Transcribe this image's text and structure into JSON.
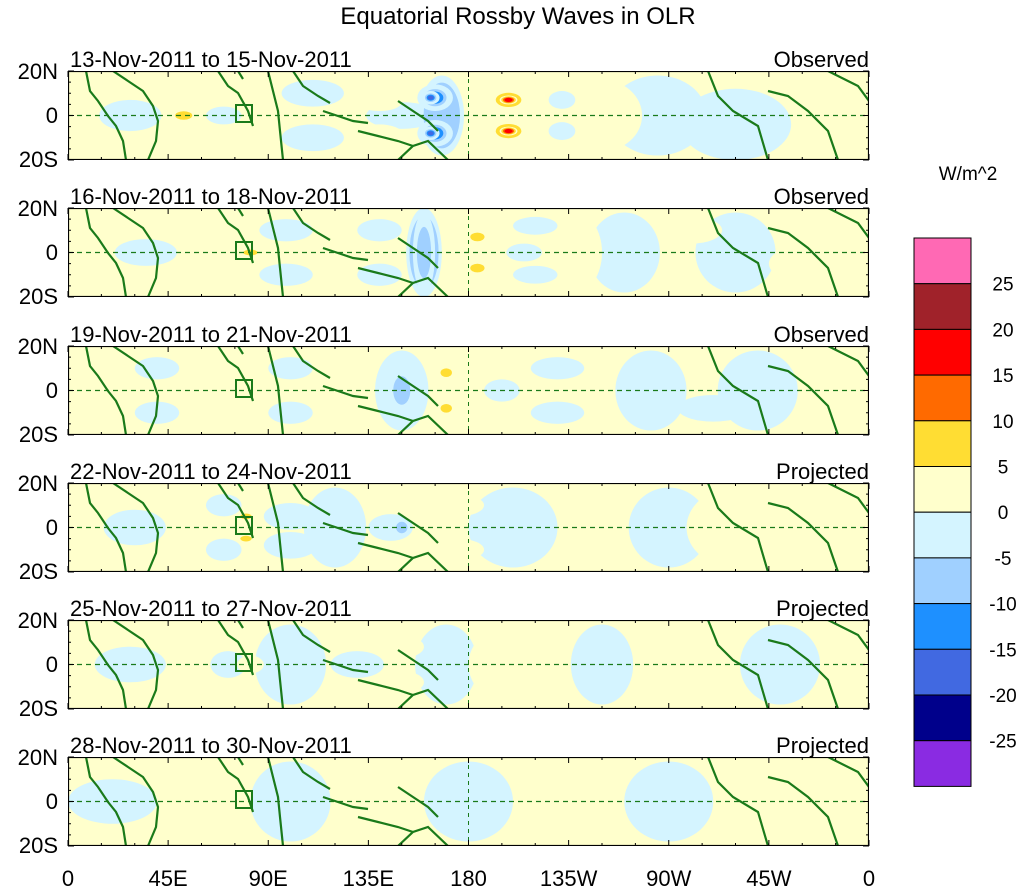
{
  "chart_data": {
    "type": "heatmap",
    "title": "Equatorial Rossby Waves in OLR",
    "units_label": "W/m^2",
    "x_ticks": [
      "0",
      "45E",
      "90E",
      "135E",
      "180",
      "135W",
      "90W",
      "45W",
      "0"
    ],
    "x_range_deg": [
      0,
      360
    ],
    "y_ticks": [
      "20N",
      "0",
      "20S"
    ],
    "y_range_deg": [
      -20,
      20
    ],
    "colorbar": {
      "levels": [
        "25",
        "20",
        "15",
        "10",
        "5",
        "0",
        "-5",
        "-10",
        "-15",
        "-20",
        "-25"
      ],
      "colors": [
        "#ff69b4",
        "#a0222a",
        "#ff0000",
        "#ff6a00",
        "#ffdd33",
        "#ffffcc",
        "#d4f4ff",
        "#a0d0ff",
        "#1e90ff",
        "#4169e1",
        "#00008b",
        "#8a2be2"
      ]
    },
    "panels": [
      {
        "date_range": "13-Nov-2011 to 15-Nov-2011",
        "status": "Observed",
        "blobs": [
          [
            48,
            8,
            10,
            5,
            8
          ],
          [
            50,
            -9,
            10,
            5,
            8
          ],
          [
            78,
            11,
            12,
            5,
            7
          ],
          [
            78,
            -12,
            12,
            5,
            7
          ],
          [
            100,
            0,
            12,
            4,
            8
          ],
          [
            52,
            0,
            6,
            3,
            12
          ],
          [
            28,
            0,
            14,
            7,
            -5
          ],
          [
            70,
            0,
            8,
            4,
            -9
          ],
          [
            110,
            10,
            14,
            6,
            -5
          ],
          [
            110,
            -10,
            14,
            6,
            -5
          ],
          [
            140,
            6,
            10,
            4,
            7
          ],
          [
            140,
            -8,
            10,
            4,
            7
          ],
          [
            150,
            0,
            16,
            6,
            -6
          ],
          [
            165,
            8,
            8,
            6,
            -18
          ],
          [
            165,
            -8,
            8,
            6,
            -18
          ],
          [
            163,
            8,
            4,
            3,
            -24
          ],
          [
            163,
            -8,
            4,
            3,
            -24
          ],
          [
            168,
            0,
            10,
            18,
            -10
          ],
          [
            198,
            7,
            9,
            5,
            12
          ],
          [
            198,
            -7,
            9,
            5,
            12
          ],
          [
            198,
            7,
            4,
            2,
            20
          ],
          [
            198,
            -7,
            4,
            2,
            20
          ],
          [
            222,
            7,
            6,
            4,
            -8
          ],
          [
            222,
            -7,
            6,
            4,
            -8
          ],
          [
            240,
            0,
            18,
            16,
            4
          ],
          [
            240,
            14,
            10,
            4,
            8
          ],
          [
            232,
            -18,
            12,
            3,
            9
          ],
          [
            265,
            0,
            22,
            18,
            -3
          ],
          [
            300,
            -4,
            25,
            16,
            -3
          ]
        ]
      },
      {
        "date_range": "16-Nov-2011 to 18-Nov-2011",
        "status": "Observed",
        "blobs": [
          [
            35,
            0,
            14,
            6,
            -5
          ],
          [
            58,
            8,
            8,
            4,
            5
          ],
          [
            58,
            -8,
            8,
            4,
            5
          ],
          [
            82,
            0,
            12,
            4,
            9
          ],
          [
            82,
            0,
            5,
            2,
            12
          ],
          [
            98,
            10,
            12,
            5,
            -5
          ],
          [
            98,
            -10,
            12,
            5,
            -5
          ],
          [
            120,
            0,
            16,
            8,
            4
          ],
          [
            140,
            10,
            10,
            5,
            -5
          ],
          [
            140,
            -10,
            10,
            5,
            -5
          ],
          [
            160,
            0,
            8,
            20,
            -10
          ],
          [
            160,
            0,
            5,
            18,
            -14
          ],
          [
            184,
            7,
            10,
            5,
            9
          ],
          [
            184,
            -7,
            10,
            5,
            9
          ],
          [
            184,
            7,
            5,
            3,
            14
          ],
          [
            184,
            -7,
            5,
            3,
            14
          ],
          [
            205,
            0,
            8,
            4,
            -6
          ],
          [
            210,
            12,
            10,
            4,
            -5
          ],
          [
            210,
            -10,
            10,
            4,
            -5
          ],
          [
            228,
            0,
            12,
            18,
            4
          ],
          [
            228,
            12,
            8,
            4,
            7
          ],
          [
            250,
            0,
            16,
            18,
            -3
          ],
          [
            280,
            10,
            14,
            6,
            4
          ],
          [
            300,
            0,
            18,
            18,
            -3
          ],
          [
            330,
            -5,
            15,
            8,
            3
          ]
        ]
      },
      {
        "date_range": "19-Nov-2011 to 21-Nov-2011",
        "status": "Observed",
        "blobs": [
          [
            40,
            10,
            10,
            5,
            -5
          ],
          [
            40,
            -10,
            10,
            5,
            -5
          ],
          [
            62,
            0,
            10,
            6,
            5
          ],
          [
            80,
            0,
            8,
            18,
            4
          ],
          [
            82,
            8,
            5,
            3,
            8
          ],
          [
            82,
            -8,
            5,
            3,
            8
          ],
          [
            100,
            10,
            10,
            5,
            -6
          ],
          [
            100,
            -10,
            10,
            5,
            -6
          ],
          [
            120,
            0,
            12,
            8,
            4
          ],
          [
            150,
            0,
            12,
            18,
            -7
          ],
          [
            150,
            0,
            6,
            10,
            -12
          ],
          [
            170,
            8,
            8,
            5,
            8
          ],
          [
            170,
            -8,
            8,
            5,
            8
          ],
          [
            170,
            8,
            4,
            3,
            11
          ],
          [
            170,
            -8,
            4,
            3,
            11
          ],
          [
            175,
            0,
            28,
            18,
            4
          ],
          [
            195,
            0,
            8,
            5,
            -6
          ],
          [
            220,
            10,
            12,
            5,
            -5
          ],
          [
            220,
            -10,
            12,
            5,
            -5
          ],
          [
            230,
            0,
            12,
            18,
            4
          ],
          [
            262,
            0,
            16,
            18,
            -3
          ],
          [
            290,
            -8,
            16,
            6,
            -5
          ],
          [
            310,
            0,
            18,
            18,
            -3
          ]
        ]
      },
      {
        "date_range": "22-Nov-2011 to 24-Nov-2011",
        "status": "Projected",
        "blobs": [
          [
            30,
            0,
            14,
            8,
            -4
          ],
          [
            52,
            8,
            10,
            5,
            5
          ],
          [
            52,
            -8,
            10,
            5,
            5
          ],
          [
            70,
            10,
            8,
            5,
            -5
          ],
          [
            70,
            -10,
            8,
            5,
            -5
          ],
          [
            80,
            0,
            8,
            4,
            8
          ],
          [
            80,
            5,
            4,
            2,
            11
          ],
          [
            80,
            -5,
            4,
            2,
            11
          ],
          [
            100,
            5,
            12,
            6,
            -4
          ],
          [
            100,
            -8,
            12,
            6,
            -4
          ],
          [
            120,
            0,
            14,
            18,
            -3
          ],
          [
            145,
            0,
            10,
            6,
            -6
          ],
          [
            150,
            0,
            4,
            4,
            -11
          ],
          [
            175,
            10,
            12,
            5,
            4
          ],
          [
            175,
            -10,
            12,
            5,
            4
          ],
          [
            200,
            0,
            20,
            18,
            -2
          ],
          [
            240,
            0,
            14,
            18,
            2
          ],
          [
            270,
            0,
            18,
            18,
            -2
          ],
          [
            300,
            0,
            22,
            18,
            2
          ]
        ]
      },
      {
        "date_range": "25-Nov-2011 to 27-Nov-2011",
        "status": "Projected",
        "blobs": [
          [
            28,
            0,
            16,
            8,
            -3
          ],
          [
            55,
            8,
            10,
            5,
            4
          ],
          [
            55,
            -8,
            10,
            5,
            4
          ],
          [
            72,
            0,
            8,
            6,
            -5
          ],
          [
            82,
            0,
            6,
            4,
            5
          ],
          [
            100,
            0,
            16,
            18,
            -3
          ],
          [
            130,
            0,
            12,
            6,
            -5
          ],
          [
            150,
            8,
            10,
            5,
            3
          ],
          [
            150,
            -8,
            10,
            5,
            3
          ],
          [
            170,
            0,
            14,
            18,
            -2
          ],
          [
            200,
            0,
            20,
            18,
            2
          ],
          [
            240,
            0,
            14,
            18,
            -2
          ],
          [
            280,
            0,
            18,
            18,
            2
          ],
          [
            320,
            0,
            18,
            18,
            -2
          ]
        ]
      },
      {
        "date_range": "28-Nov-2011 to 30-Nov-2011",
        "status": "Projected",
        "blobs": [
          [
            20,
            0,
            20,
            10,
            -2
          ],
          [
            60,
            0,
            14,
            18,
            2
          ],
          [
            100,
            0,
            18,
            18,
            -2
          ],
          [
            140,
            0,
            16,
            18,
            2
          ],
          [
            180,
            0,
            20,
            18,
            -2
          ],
          [
            220,
            0,
            20,
            18,
            2
          ],
          [
            270,
            0,
            20,
            18,
            -2
          ],
          [
            320,
            0,
            20,
            18,
            2
          ]
        ]
      }
    ]
  }
}
